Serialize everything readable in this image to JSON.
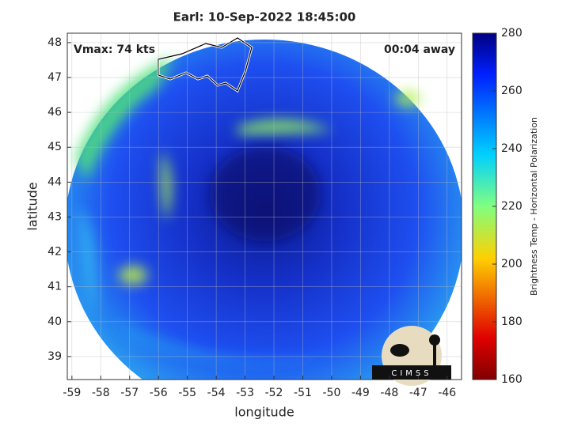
{
  "chart_data": {
    "type": "image",
    "title": "Earl: 10-Sep-2022 18:45:00",
    "xlabel": "longitude",
    "ylabel": "latitude",
    "xlim": [
      -59.16,
      -45.5
    ],
    "ylim": [
      38.34,
      48.27
    ],
    "xticks": [
      -59,
      -58,
      -57,
      -56,
      -55,
      -54,
      -53,
      -52,
      -51,
      -50,
      -49,
      -48,
      -47,
      -46
    ],
    "yticks": [
      39,
      40,
      41,
      42,
      43,
      44,
      45,
      46,
      47,
      48
    ],
    "grid": true,
    "annotations": {
      "vmax": "Vmax: 74 kts",
      "away": "00:04 away"
    },
    "logo": "CIMSS",
    "colorbar": {
      "label": "Brightness Temp - Horizontal Polarization",
      "lim": [
        160,
        280
      ],
      "ticks": [
        160,
        180,
        200,
        220,
        240,
        260,
        280
      ]
    }
  }
}
